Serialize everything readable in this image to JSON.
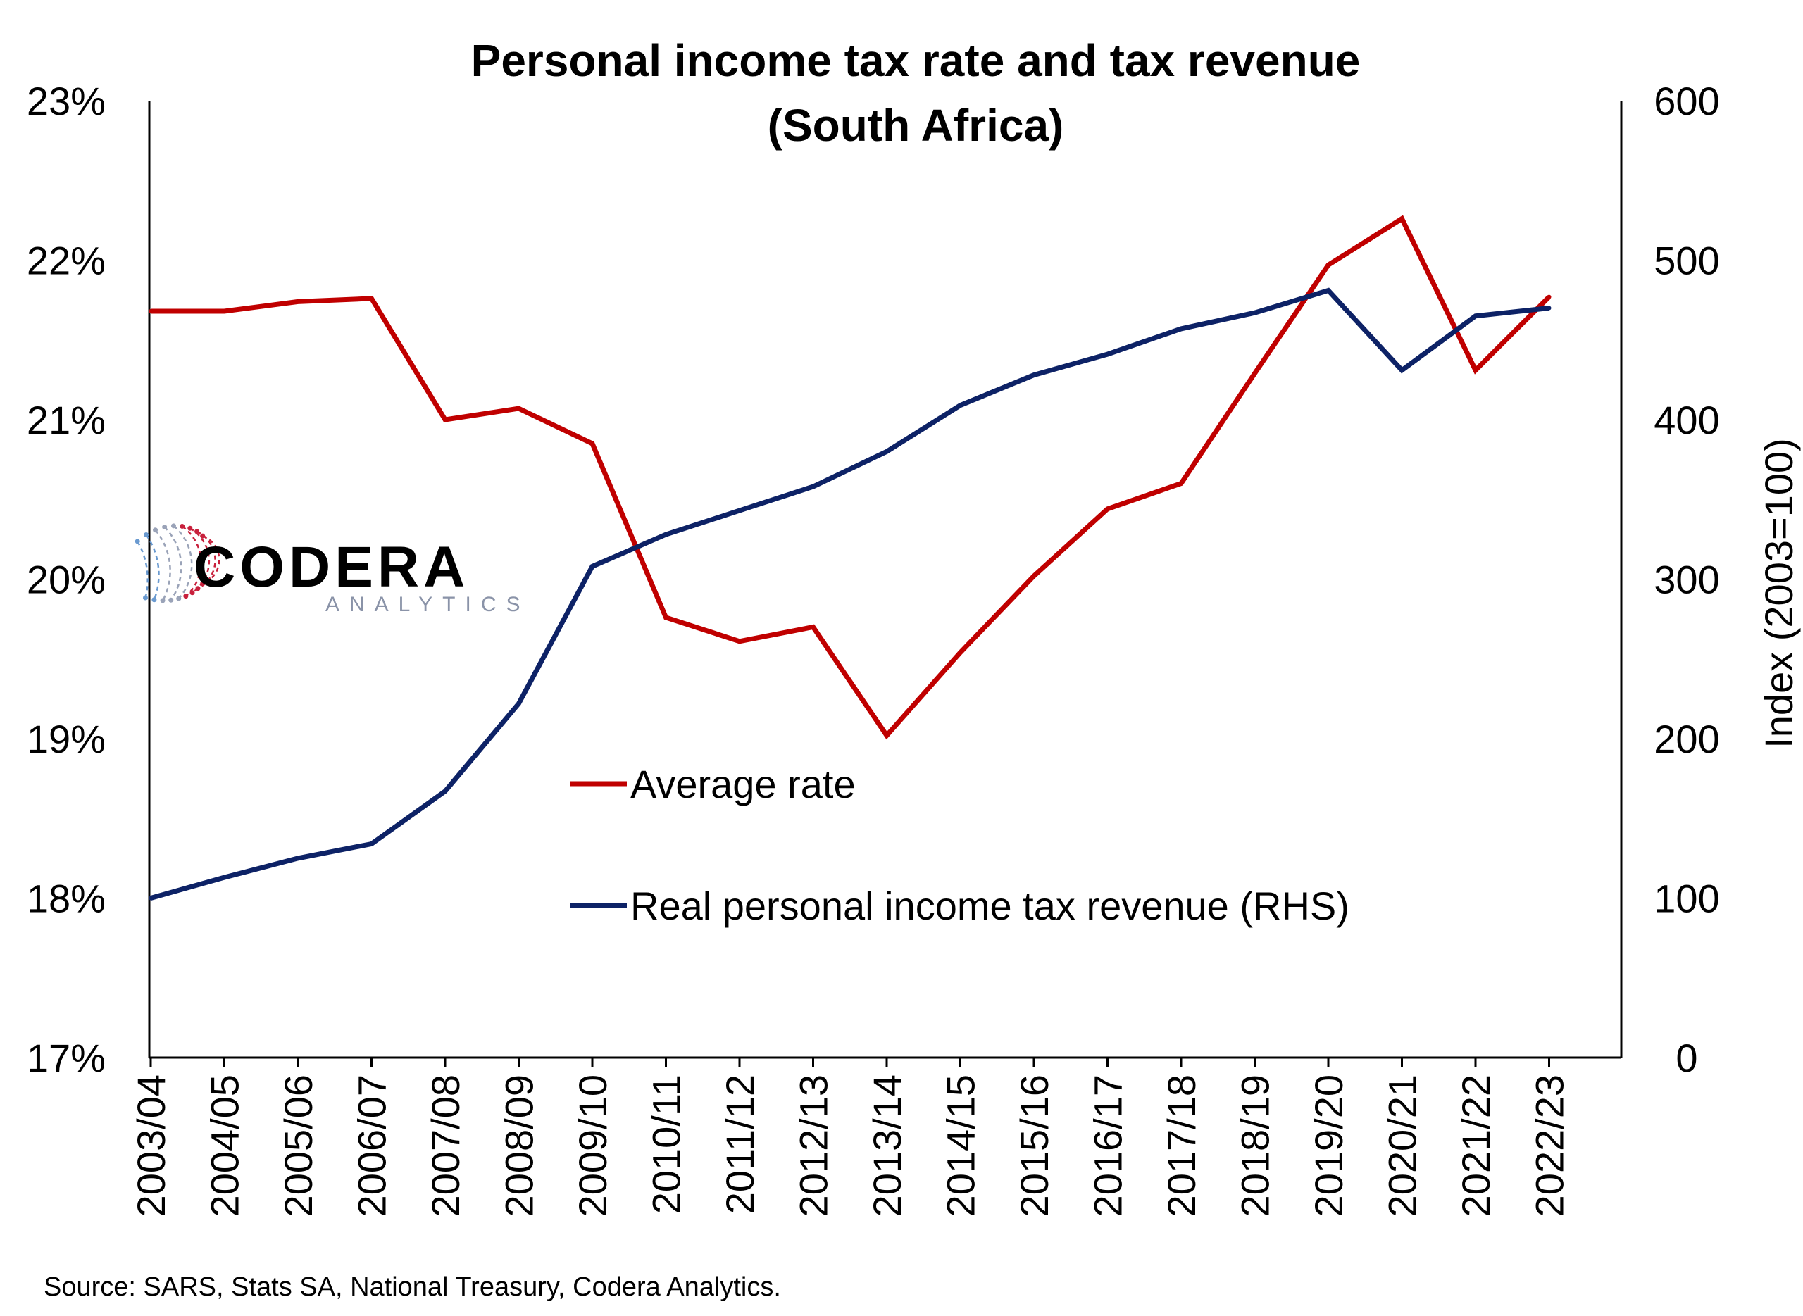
{
  "chart_data": {
    "type": "line",
    "title": "Personal income tax rate and tax revenue",
    "subtitle": "(South Africa)",
    "xlabel": "",
    "ylabel_left": "",
    "ylabel_right": "Index (2003=100)",
    "ylim_left": [
      17,
      23
    ],
    "ylim_right": [
      0,
      600
    ],
    "yticks_left": [
      "17%",
      "18%",
      "19%",
      "20%",
      "21%",
      "22%",
      "23%"
    ],
    "yticks_right": [
      "0",
      "100",
      "200",
      "300",
      "400",
      "500",
      "600"
    ],
    "categories": [
      "2003/04",
      "2004/05",
      "2005/06",
      "2006/07",
      "2007/08",
      "2008/09",
      "2009/10",
      "2010/11",
      "2011/12",
      "2012/13",
      "2013/14",
      "2014/15",
      "2015/16",
      "2016/17",
      "2017/18",
      "2018/19",
      "2019/20",
      "2020/21",
      "2021/22",
      "2022/23"
    ],
    "series": [
      {
        "name": "Average rate",
        "axis": "left",
        "color": "#c00000",
        "values": [
          21.68,
          21.68,
          21.74,
          21.76,
          21.0,
          21.07,
          20.85,
          19.76,
          19.61,
          19.7,
          19.02,
          19.54,
          20.02,
          20.44,
          20.6,
          21.29,
          21.97,
          22.26,
          21.31,
          21.77
        ]
      },
      {
        "name": "Real personal income tax revenue (RHS)",
        "axis": "right",
        "color": "#0d2266",
        "values": [
          100,
          113,
          125,
          134,
          167,
          222,
          308,
          328,
          343,
          358,
          380,
          409,
          428,
          441,
          457,
          467,
          481,
          431,
          465,
          470
        ]
      }
    ],
    "grid": false,
    "legend_position": "center"
  },
  "logo": {
    "name": "CODERA",
    "tagline": "ANALYTICS",
    "colors": [
      "#c8203c",
      "#6a9ad0",
      "#9aa3b8"
    ]
  },
  "source": "Source: SARS, Stats SA, National Treasury, Codera Analytics."
}
